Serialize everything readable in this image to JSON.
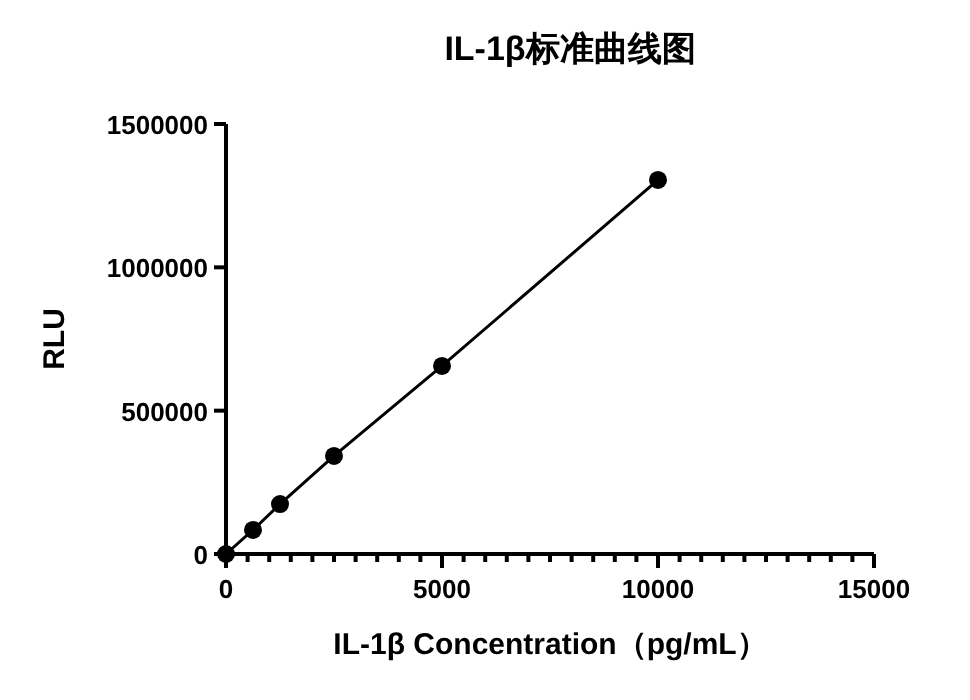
{
  "chart_data": {
    "type": "line",
    "title": "IL-1β标准曲线图",
    "xlabel": "IL-1β Concentration（pg/mL）",
    "ylabel": "RLU",
    "x": [
      0,
      625,
      1250,
      2500,
      5000,
      10000
    ],
    "series": [
      {
        "color": "#000000",
        "values": [
          0,
          84000,
          174000,
          342000,
          656000,
          1305000
        ]
      }
    ],
    "marker": "circle",
    "line_style": "solid",
    "xlim": [
      0,
      15000
    ],
    "ylim": [
      0,
      1500000
    ],
    "xticks": [
      0,
      {
        "value": 500,
        "label": null
      },
      {
        "value": 1000,
        "label": null
      },
      {
        "value": 1500,
        "label": null
      },
      {
        "value": 2000,
        "label": null
      },
      {
        "value": 2500,
        "label": null
      },
      {
        "value": 3000,
        "label": null
      },
      {
        "value": 3500,
        "label": null
      },
      {
        "value": 4000,
        "label": null
      },
      {
        "value": 4500,
        "label": null
      },
      5000,
      {
        "value": 5500,
        "label": null
      },
      {
        "value": 6000,
        "label": null
      },
      {
        "value": 6500,
        "label": null
      },
      {
        "value": 7000,
        "label": null
      },
      {
        "value": 7500,
        "label": null
      },
      {
        "value": 8000,
        "label": null
      },
      {
        "value": 8500,
        "label": null
      },
      {
        "value": 9000,
        "label": null
      },
      {
        "value": 9500,
        "label": null
      },
      10000,
      {
        "value": 10500,
        "label": null
      },
      {
        "value": 11000,
        "label": null
      },
      {
        "value": 11500,
        "label": null
      },
      {
        "value": 12000,
        "label": null
      },
      {
        "value": 12500,
        "label": null
      },
      {
        "value": 13000,
        "label": null
      },
      {
        "value": 13500,
        "label": null
      },
      {
        "value": 14000,
        "label": null
      },
      {
        "value": 14500,
        "label": null
      },
      15000
    ],
    "yticks": [
      0,
      500000,
      1000000,
      1500000
    ]
  }
}
